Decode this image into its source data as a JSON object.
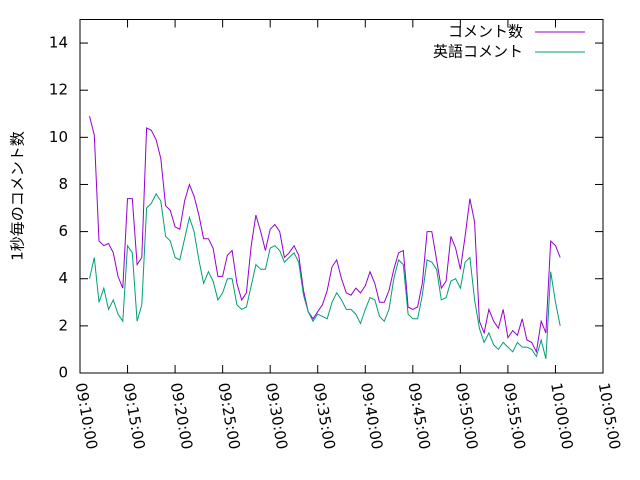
{
  "chart_data": {
    "type": "line",
    "y_label": "1秒毎のコメント数",
    "x": [
      "09:11:00",
      "09:11:30",
      "09:12:00",
      "09:12:30",
      "09:13:00",
      "09:13:30",
      "09:14:00",
      "09:14:30",
      "09:15:00",
      "09:15:30",
      "09:16:00",
      "09:16:30",
      "09:17:00",
      "09:17:30",
      "09:18:00",
      "09:18:30",
      "09:19:00",
      "09:19:30",
      "09:20:00",
      "09:20:30",
      "09:21:00",
      "09:21:30",
      "09:22:00",
      "09:22:30",
      "09:23:00",
      "09:23:30",
      "09:24:00",
      "09:24:30",
      "09:25:00",
      "09:25:30",
      "09:26:00",
      "09:26:30",
      "09:27:00",
      "09:27:30",
      "09:28:00",
      "09:28:30",
      "09:29:00",
      "09:29:30",
      "09:30:00",
      "09:30:30",
      "09:31:00",
      "09:31:30",
      "09:32:00",
      "09:32:30",
      "09:33:00",
      "09:33:30",
      "09:34:00",
      "09:34:30",
      "09:35:00",
      "09:35:30",
      "09:36:00",
      "09:36:30",
      "09:37:00",
      "09:37:30",
      "09:38:00",
      "09:38:30",
      "09:39:00",
      "09:39:30",
      "09:40:00",
      "09:40:30",
      "09:41:00",
      "09:41:30",
      "09:42:00",
      "09:42:30",
      "09:43:00",
      "09:43:30",
      "09:44:00",
      "09:44:30",
      "09:45:00",
      "09:45:30",
      "09:46:00",
      "09:46:30",
      "09:47:00",
      "09:47:30",
      "09:48:00",
      "09:48:30",
      "09:49:00",
      "09:49:30",
      "09:50:00",
      "09:50:30",
      "09:51:00",
      "09:51:30",
      "09:52:00",
      "09:52:30",
      "09:53:00",
      "09:53:30",
      "09:54:00",
      "09:54:30",
      "09:55:00",
      "09:55:30",
      "09:56:00",
      "09:56:30",
      "09:57:00",
      "09:57:30",
      "09:58:00",
      "09:58:30",
      "09:59:00",
      "09:59:30",
      "10:00:00",
      "10:00:30"
    ],
    "series": [
      {
        "name": "コメント数",
        "color": "#9400d3",
        "values": [
          10.9,
          10.1,
          5.6,
          5.4,
          5.5,
          5.1,
          4.1,
          3.6,
          7.4,
          7.4,
          4.6,
          4.9,
          10.4,
          10.3,
          9.9,
          9.1,
          7.1,
          6.9,
          6.2,
          6.1,
          7.3,
          8.0,
          7.5,
          6.7,
          5.7,
          5.7,
          5.3,
          4.1,
          4.1,
          5.0,
          5.2,
          3.8,
          3.1,
          3.4,
          5.4,
          6.7,
          6.0,
          5.2,
          6.1,
          6.3,
          6.0,
          4.9,
          5.1,
          5.4,
          5.0,
          3.5,
          2.6,
          2.3,
          2.6,
          2.9,
          3.5,
          4.5,
          4.8,
          4.0,
          3.4,
          3.3,
          3.6,
          3.4,
          3.7,
          4.3,
          3.8,
          3.0,
          3.0,
          3.5,
          4.4,
          5.1,
          5.2,
          2.8,
          2.7,
          2.8,
          3.8,
          6.0,
          6.0,
          4.8,
          3.6,
          3.9,
          5.8,
          5.3,
          4.4,
          5.8,
          7.4,
          6.4,
          2.2,
          1.7,
          2.7,
          2.2,
          1.9,
          2.7,
          1.5,
          1.8,
          1.6,
          2.3,
          1.4,
          1.3,
          0.9,
          2.2,
          1.7,
          5.6,
          5.4,
          4.9
        ]
      },
      {
        "name": "英語コメント",
        "color": "#009e73",
        "values": [
          4.0,
          4.9,
          3.0,
          3.6,
          2.7,
          3.1,
          2.5,
          2.2,
          5.4,
          5.1,
          2.2,
          2.9,
          7.0,
          7.2,
          7.6,
          7.3,
          5.8,
          5.6,
          4.9,
          4.8,
          5.7,
          6.6,
          6.0,
          4.8,
          3.8,
          4.3,
          3.9,
          3.1,
          3.4,
          4.0,
          4.0,
          2.9,
          2.7,
          2.8,
          3.7,
          4.6,
          4.4,
          4.4,
          5.3,
          5.4,
          5.2,
          4.7,
          4.9,
          5.1,
          4.7,
          3.3,
          2.6,
          2.2,
          2.5,
          2.4,
          2.3,
          3.0,
          3.4,
          3.1,
          2.7,
          2.7,
          2.5,
          2.1,
          2.7,
          3.2,
          3.1,
          2.4,
          2.2,
          2.7,
          4.0,
          4.8,
          4.6,
          2.5,
          2.3,
          2.3,
          3.3,
          4.8,
          4.7,
          4.4,
          3.1,
          3.2,
          3.9,
          4.0,
          3.6,
          4.7,
          4.9,
          3.1,
          1.9,
          1.3,
          1.7,
          1.2,
          1.0,
          1.3,
          1.1,
          0.9,
          1.3,
          1.1,
          1.1,
          1.0,
          0.7,
          1.4,
          0.6,
          4.3,
          3.0,
          2.0
        ]
      }
    ],
    "xlim": [
      "09:10:00",
      "10:05:00"
    ],
    "xticks": [
      "09:10:00",
      "09:15:00",
      "09:20:00",
      "09:25:00",
      "09:30:00",
      "09:35:00",
      "09:40:00",
      "09:45:00",
      "09:50:00",
      "09:55:00",
      "10:00:00",
      "10:05:00"
    ],
    "ylim": [
      0,
      15
    ],
    "yticks": [
      0,
      2,
      4,
      6,
      8,
      10,
      12,
      14
    ],
    "legend": "top-right"
  }
}
